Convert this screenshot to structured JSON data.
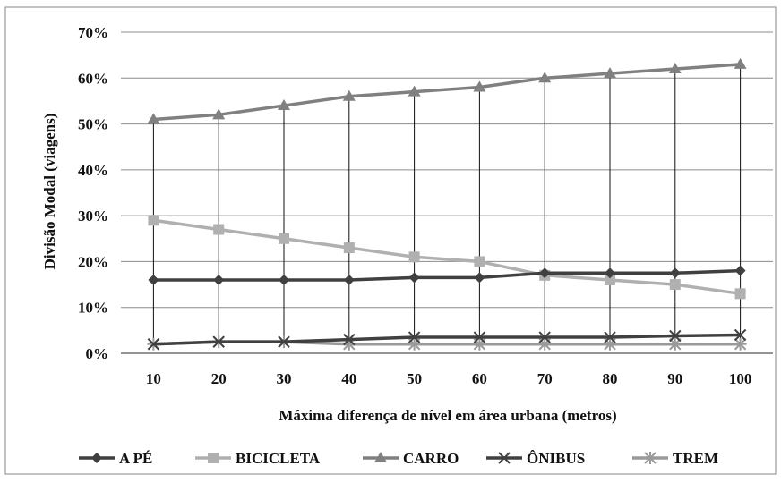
{
  "chart_data": {
    "type": "line",
    "title": "",
    "xlabel": "Máxima diferença de nível em área urbana (metros)",
    "ylabel": "Divisão Modal (viagens)",
    "x": [
      10,
      20,
      30,
      40,
      50,
      60,
      70,
      80,
      90,
      100
    ],
    "x_tick_labels": [
      "10",
      "20",
      "30",
      "40",
      "50",
      "60",
      "70",
      "80",
      "90",
      "100"
    ],
    "ylim": [
      0,
      70
    ],
    "y_ticks": [
      0,
      10,
      20,
      30,
      40,
      50,
      60,
      70
    ],
    "y_tick_labels": [
      "0%",
      "10%",
      "20%",
      "30%",
      "40%",
      "50%",
      "60%",
      "70%"
    ],
    "grid": "horizontal",
    "drop_lines": true,
    "legend_position": "bottom",
    "series": [
      {
        "name": "A PÉ",
        "color": "#404040",
        "marker": "diamond",
        "values": [
          16,
          16,
          16,
          16,
          16.5,
          16.5,
          17.5,
          17.5,
          17.5,
          18
        ]
      },
      {
        "name": "BICICLETA",
        "color": "#b0b0b0",
        "marker": "square",
        "values": [
          29,
          27,
          25,
          23,
          21,
          20,
          17,
          16,
          15,
          13
        ]
      },
      {
        "name": "CARRO",
        "color": "#808080",
        "marker": "triangle",
        "values": [
          51,
          52,
          54,
          56,
          57,
          58,
          60,
          61,
          62,
          63
        ]
      },
      {
        "name": "ÔNIBUS",
        "color": "#404040",
        "marker": "x",
        "values": [
          2,
          2.5,
          2.5,
          3,
          3.5,
          3.5,
          3.5,
          3.5,
          3.8,
          4
        ]
      },
      {
        "name": "TREM",
        "color": "#9a9a9a",
        "marker": "star",
        "values": [
          2,
          2.5,
          2.5,
          2,
          2,
          2,
          2,
          2,
          2,
          2
        ]
      }
    ]
  }
}
